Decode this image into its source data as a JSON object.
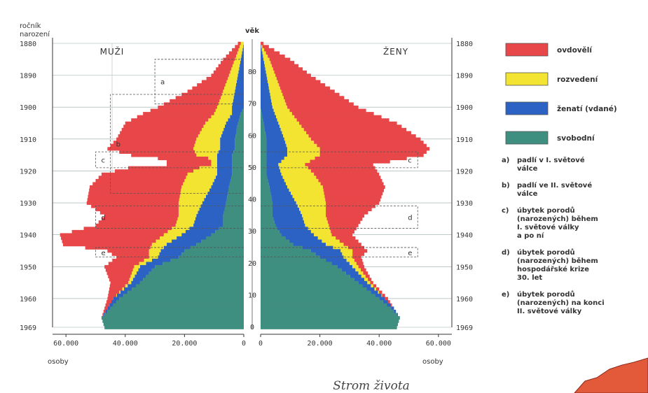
{
  "chart_data": {
    "type": "population-pyramid",
    "caption": "Strom života",
    "left_header": "MUŽI",
    "right_header": "ŽENY",
    "age_label": "věk",
    "birth_year_label": [
      "ročník",
      "narození"
    ],
    "x_unit": "osoby",
    "male_ticks": [
      "60.000",
      "40.000",
      "20.000",
      "0"
    ],
    "female_ticks": [
      "0",
      "20.000",
      "40.000",
      "60.000"
    ],
    "x_range": [
      0,
      65000
    ],
    "years": [
      "1880",
      "1890",
      "1900",
      "1910",
      "1920",
      "1930",
      "1940",
      "1950",
      "1960",
      "1969"
    ],
    "year_range": [
      1880,
      1969
    ],
    "ages": [
      "80",
      "70",
      "60",
      "50",
      "40",
      "30",
      "20",
      "10",
      "0"
    ],
    "series": [
      {
        "name": "ovdovělí",
        "color": "#e8474a"
      },
      {
        "name": "rozvedení",
        "color": "#f2e430"
      },
      {
        "name": "ženatí (vdané)",
        "color": "#2c62c4"
      },
      {
        "name": "svobodní",
        "color": "#3f8f80"
      }
    ],
    "keypoints": {
      "male": [
        [
          1880,
          0,
          0,
          1000,
          1000
        ],
        [
          1885,
          0,
          1000,
          2000,
          4000
        ],
        [
          1890,
          0,
          2000,
          3000,
          6000
        ],
        [
          1895,
          0,
          3000,
          4000,
          12000
        ],
        [
          1900,
          0,
          4000,
          5000,
          20000
        ],
        [
          1902,
          1000,
          3000,
          6000,
          24000
        ],
        [
          1905,
          2000,
          4000,
          7000,
          27000
        ],
        [
          1910,
          3000,
          5000,
          8000,
          27000
        ],
        [
          1913,
          3000,
          5000,
          9000,
          29000
        ],
        [
          1915,
          4000,
          5000,
          7000,
          22000
        ],
        [
          1916,
          4000,
          5000,
          3000,
          17000
        ],
        [
          1917,
          4000,
          5000,
          2000,
          15000
        ],
        [
          1918,
          4000,
          5000,
          2000,
          15000
        ],
        [
          1919,
          4000,
          5000,
          6000,
          24000
        ],
        [
          1921,
          4000,
          5000,
          10000,
          29000
        ],
        [
          1925,
          5000,
          6000,
          10000,
          31000
        ],
        [
          1930,
          6000,
          8000,
          8000,
          31000
        ],
        [
          1934,
          7000,
          9000,
          6000,
          25000
        ],
        [
          1937,
          7000,
          10000,
          6000,
          27000
        ],
        [
          1940,
          11000,
          10000,
          6000,
          35000
        ],
        [
          1943,
          16000,
          10000,
          5000,
          30000
        ],
        [
          1945,
          20000,
          8000,
          4000,
          14000
        ],
        [
          1947,
          22000,
          7000,
          3000,
          11000
        ],
        [
          1950,
          30000,
          5000,
          2000,
          10000
        ],
        [
          1955,
          35000,
          3000,
          1000,
          6000
        ],
        [
          1960,
          42000,
          2000,
          0,
          2000
        ],
        [
          1963,
          45000,
          1000,
          0,
          1000
        ],
        [
          1966,
          48000,
          0,
          0,
          0
        ],
        [
          1969,
          47000,
          0,
          0,
          0
        ]
      ],
      "female": [
        [
          1880,
          0,
          0,
          0,
          1000
        ],
        [
          1885,
          0,
          1000,
          2000,
          7000
        ],
        [
          1890,
          0,
          2000,
          3000,
          12000
        ],
        [
          1895,
          0,
          3000,
          4000,
          18000
        ],
        [
          1900,
          0,
          4000,
          5000,
          24000
        ],
        [
          1905,
          1000,
          5000,
          7000,
          33000
        ],
        [
          1910,
          2000,
          6000,
          9000,
          37000
        ],
        [
          1913,
          2000,
          7000,
          11000,
          37000
        ],
        [
          1915,
          2000,
          7000,
          11000,
          35000
        ],
        [
          1918,
          2000,
          4000,
          9000,
          23000
        ],
        [
          1921,
          2000,
          5000,
          11000,
          22000
        ],
        [
          1925,
          3000,
          6000,
          12000,
          21000
        ],
        [
          1930,
          4000,
          8000,
          10000,
          18000
        ],
        [
          1934,
          4000,
          10000,
          8000,
          13000
        ],
        [
          1937,
          5000,
          10000,
          8000,
          10000
        ],
        [
          1940,
          7000,
          11000,
          6000,
          7000
        ],
        [
          1943,
          11000,
          11000,
          6000,
          6000
        ],
        [
          1945,
          17000,
          10000,
          4000,
          5000
        ],
        [
          1947,
          20000,
          8000,
          3000,
          3000
        ],
        [
          1950,
          26000,
          5000,
          2000,
          2000
        ],
        [
          1955,
          33000,
          3000,
          1000,
          1000
        ],
        [
          1960,
          40000,
          2000,
          0,
          1000
        ],
        [
          1963,
          44000,
          1000,
          0,
          0
        ],
        [
          1966,
          47000,
          0,
          0,
          0
        ],
        [
          1969,
          46000,
          0,
          0,
          0
        ]
      ]
    },
    "markers_left": [
      {
        "id": "a",
        "from": 1885,
        "to": 1899,
        "x": 30000
      },
      {
        "id": "b",
        "from": 1896,
        "to": 1927,
        "x": 45000
      },
      {
        "id": "c",
        "from": 1914,
        "to": 1919,
        "x": 50000
      },
      {
        "id": "d",
        "from": 1931,
        "to": 1938,
        "x": 50000
      },
      {
        "id": "e",
        "from": 1944,
        "to": 1947,
        "x": 50000
      }
    ],
    "markers_right": [
      {
        "id": "c",
        "from": 1914,
        "to": 1919,
        "x": 53000
      },
      {
        "id": "d",
        "from": 1931,
        "to": 1938,
        "x": 53000
      },
      {
        "id": "e",
        "from": 1944,
        "to": 1947,
        "x": 53000
      }
    ],
    "notes": [
      {
        "key": "a)",
        "lines": [
          "padlí v I. světové",
          "válce"
        ]
      },
      {
        "key": "b)",
        "lines": [
          "padlí ve II. světové",
          "válce"
        ]
      },
      {
        "key": "c)",
        "lines": [
          "úbytek porodů",
          "(narozených) během",
          "I. světové války",
          "a po ní"
        ]
      },
      {
        "key": "d)",
        "lines": [
          "úbytek porodů",
          "(narozených) během",
          "hospodářské krize",
          "30. let"
        ]
      },
      {
        "key": "e)",
        "lines": [
          "úbytek porodů",
          "(narozených) na konci",
          "II. světové války"
        ]
      }
    ]
  }
}
